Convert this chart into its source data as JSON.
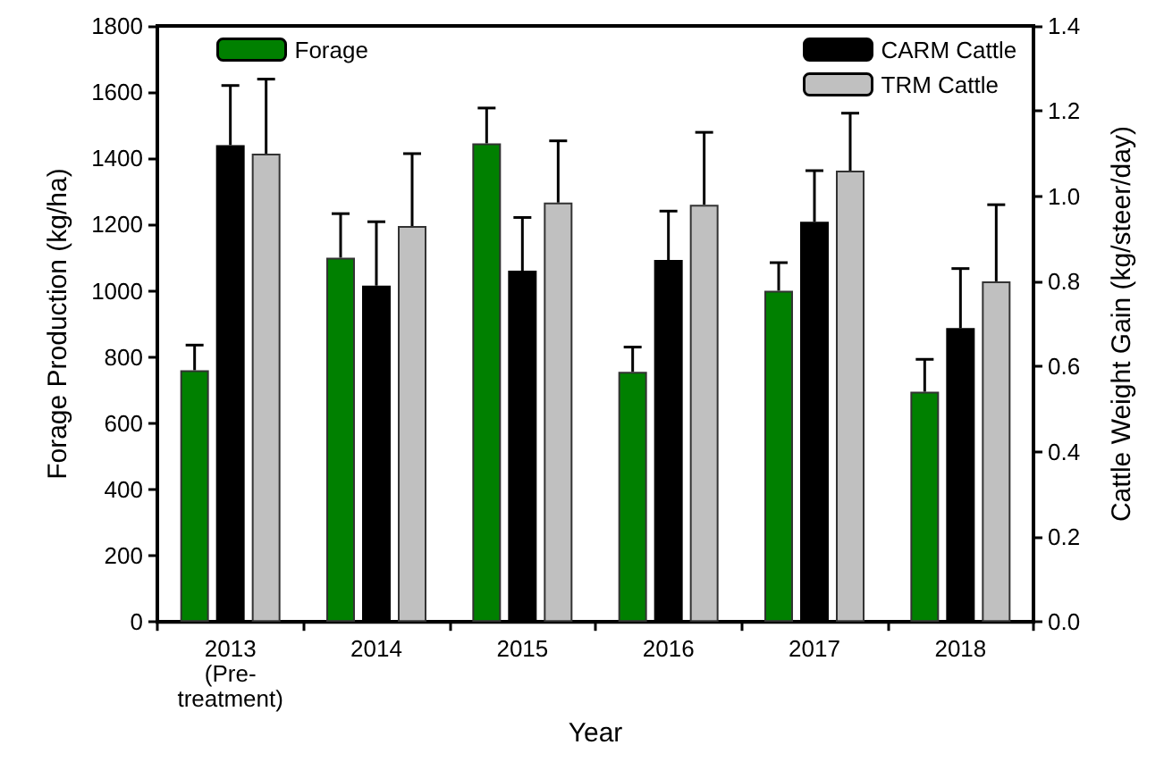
{
  "chart_data": {
    "type": "bar",
    "xlabel": "Year",
    "ylabel": "Forage Production (kg/ha)",
    "y2label": "Cattle Weight Gain (kg/steer/day)",
    "categories": [
      "2013\n(Pre-\ntreatment)",
      "2014",
      "2015",
      "2016",
      "2017",
      "2018"
    ],
    "series": [
      {
        "name": "Forage",
        "color": "#008000",
        "values": [
          760,
          1100,
          1445,
          755,
          1000,
          695
        ],
        "errors": [
          [
            760,
            836
          ],
          [
            1100,
            1233
          ],
          [
            1445,
            1552
          ],
          [
            755,
            830
          ],
          [
            1000,
            1085
          ],
          [
            695,
            793
          ]
        ]
      },
      {
        "name": "CARM Cattle",
        "color": "#000000",
        "axis": "y2",
        "values": [
          1.12,
          0.79,
          0.825,
          0.85,
          0.94,
          0.69
        ],
        "errors": [
          [
            1.12,
            1.26
          ],
          [
            0.79,
            0.94
          ],
          [
            0.825,
            0.95
          ],
          [
            0.85,
            0.965
          ],
          [
            0.94,
            1.06
          ],
          [
            0.69,
            0.83
          ]
        ]
      },
      {
        "name": "TRM Cattle",
        "color": "#c0c0c0",
        "axis": "y2",
        "values": [
          1.1,
          0.93,
          0.985,
          0.98,
          1.06,
          0.8
        ],
        "errors": [
          [
            1.1,
            1.275
          ],
          [
            0.93,
            1.1
          ],
          [
            0.985,
            1.13
          ],
          [
            0.98,
            1.15
          ],
          [
            1.06,
            1.195
          ],
          [
            0.8,
            0.98
          ]
        ]
      }
    ],
    "ylim": [
      0,
      1800
    ],
    "yticks": [
      0,
      200,
      400,
      600,
      800,
      1000,
      1200,
      1400,
      1600,
      1800
    ],
    "y2lim": [
      0,
      1.4
    ],
    "y2ticks": [
      {
        "value": 0,
        "label": "0.0"
      },
      0.2,
      0.4,
      0.6,
      0.8,
      {
        "value": 1,
        "label": "1.0"
      },
      1.2,
      1.4
    ],
    "grid": false,
    "legend": "top"
  }
}
